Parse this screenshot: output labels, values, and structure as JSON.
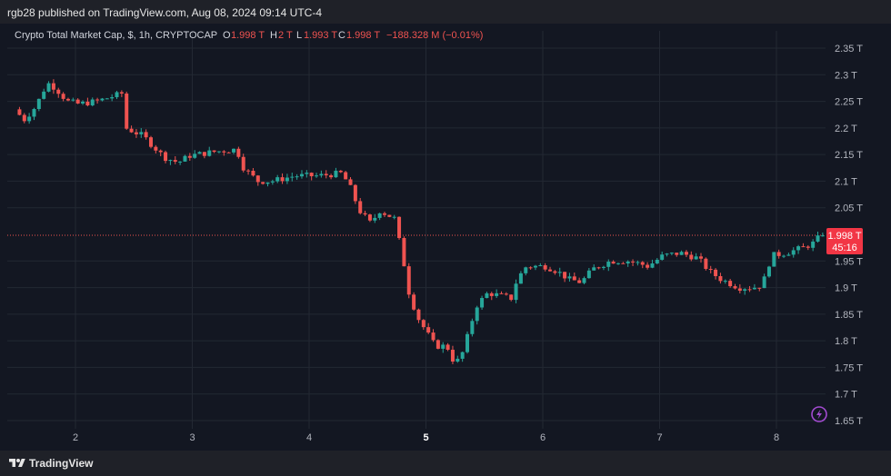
{
  "header": {
    "published_by": "rgb28 published on TradingView.com, Aug 08, 2024 09:14 UTC-4"
  },
  "legend": {
    "symbol": "Crypto Total Market Cap, $, 1h, CRYPTOCAP",
    "o_label": "O",
    "o_value": "1.998 T",
    "h_label": "H",
    "h_value": "2 T",
    "l_label": "L",
    "l_value": "1.993 T",
    "c_label": "C",
    "c_value": "1.998 T",
    "change": "−188.328 M (−0.01%)"
  },
  "price_tag": {
    "price": "1.998 T",
    "countdown": "45:16"
  },
  "footer": {
    "brand": "TradingView",
    "logo_icon": "tradingview-logo-icon"
  },
  "colors": {
    "up": "#26a69a",
    "down": "#ef5350",
    "tag": "#f23645",
    "background": "#131722",
    "grid": "#232833",
    "axis_text": "#b2b5be",
    "bolt": "#a34bd1"
  },
  "chart_data": {
    "type": "candlestick",
    "title": "Crypto Total Market Cap, $, 1h, CRYPTOCAP",
    "ylim": [
      1.64,
      2.37
    ],
    "xlim": [
      1.5,
      8.4
    ],
    "y_ticks": [
      {
        "value": 2.35,
        "label": "2.35 T"
      },
      {
        "value": 2.3,
        "label": "2.3 T"
      },
      {
        "value": 2.25,
        "label": "2.25 T"
      },
      {
        "value": 2.2,
        "label": "2.2 T"
      },
      {
        "value": 2.15,
        "label": "2.15 T"
      },
      {
        "value": 2.1,
        "label": "2.1 T"
      },
      {
        "value": 2.05,
        "label": "2.05 T"
      },
      {
        "value": 1.95,
        "label": "1.95 T"
      },
      {
        "value": 1.9,
        "label": "1.9 T"
      },
      {
        "value": 1.85,
        "label": "1.85 T"
      },
      {
        "value": 1.8,
        "label": "1.8 T"
      },
      {
        "value": 1.75,
        "label": "1.75 T"
      },
      {
        "value": 1.7,
        "label": "1.7 T"
      },
      {
        "value": 1.65,
        "label": "1.65 T"
      }
    ],
    "x_ticks": [
      {
        "value": 2,
        "label": "2",
        "bold": false
      },
      {
        "value": 3,
        "label": "3",
        "bold": false
      },
      {
        "value": 4,
        "label": "4",
        "bold": false
      },
      {
        "value": 5,
        "label": "5",
        "bold": true
      },
      {
        "value": 6,
        "label": "6",
        "bold": false
      },
      {
        "value": 7,
        "label": "7",
        "bold": false
      },
      {
        "value": 8,
        "label": "8",
        "bold": false
      }
    ],
    "last_price": 1.998,
    "grid": true,
    "waypoints": [
      [
        1.5,
        2.235
      ],
      [
        1.58,
        2.215
      ],
      [
        1.68,
        2.24
      ],
      [
        1.78,
        2.285
      ],
      [
        1.85,
        2.275
      ],
      [
        1.95,
        2.25
      ],
      [
        2.05,
        2.245
      ],
      [
        2.2,
        2.25
      ],
      [
        2.35,
        2.26
      ],
      [
        2.42,
        2.265
      ],
      [
        2.45,
        2.2
      ],
      [
        2.6,
        2.185
      ],
      [
        2.78,
        2.145
      ],
      [
        2.9,
        2.135
      ],
      [
        3.0,
        2.148
      ],
      [
        3.2,
        2.155
      ],
      [
        3.4,
        2.16
      ],
      [
        3.46,
        2.125
      ],
      [
        3.58,
        2.1
      ],
      [
        3.7,
        2.1
      ],
      [
        3.9,
        2.11
      ],
      [
        4.1,
        2.11
      ],
      [
        4.3,
        2.115
      ],
      [
        4.37,
        2.09
      ],
      [
        4.45,
        2.045
      ],
      [
        4.55,
        2.02
      ],
      [
        4.62,
        2.045
      ],
      [
        4.75,
        2.03
      ],
      [
        4.82,
        1.96
      ],
      [
        4.88,
        1.885
      ],
      [
        4.96,
        1.84
      ],
      [
        5.1,
        1.79
      ],
      [
        5.2,
        1.79
      ],
      [
        5.27,
        1.755
      ],
      [
        5.34,
        1.78
      ],
      [
        5.45,
        1.865
      ],
      [
        5.55,
        1.89
      ],
      [
        5.65,
        1.885
      ],
      [
        5.75,
        1.88
      ],
      [
        5.8,
        1.915
      ],
      [
        5.88,
        1.94
      ],
      [
        6.05,
        1.94
      ],
      [
        6.15,
        1.93
      ],
      [
        6.25,
        1.915
      ],
      [
        6.35,
        1.91
      ],
      [
        6.45,
        1.935
      ],
      [
        6.6,
        1.95
      ],
      [
        6.75,
        1.95
      ],
      [
        6.85,
        1.945
      ],
      [
        6.92,
        1.94
      ],
      [
        7.05,
        1.96
      ],
      [
        7.2,
        1.965
      ],
      [
        7.35,
        1.955
      ],
      [
        7.45,
        1.93
      ],
      [
        7.55,
        1.915
      ],
      [
        7.7,
        1.9
      ],
      [
        7.82,
        1.9
      ],
      [
        7.9,
        1.905
      ],
      [
        7.98,
        1.96
      ],
      [
        8.1,
        1.965
      ],
      [
        8.25,
        1.975
      ],
      [
        8.35,
        1.985
      ],
      [
        8.39,
        1.998
      ]
    ]
  }
}
